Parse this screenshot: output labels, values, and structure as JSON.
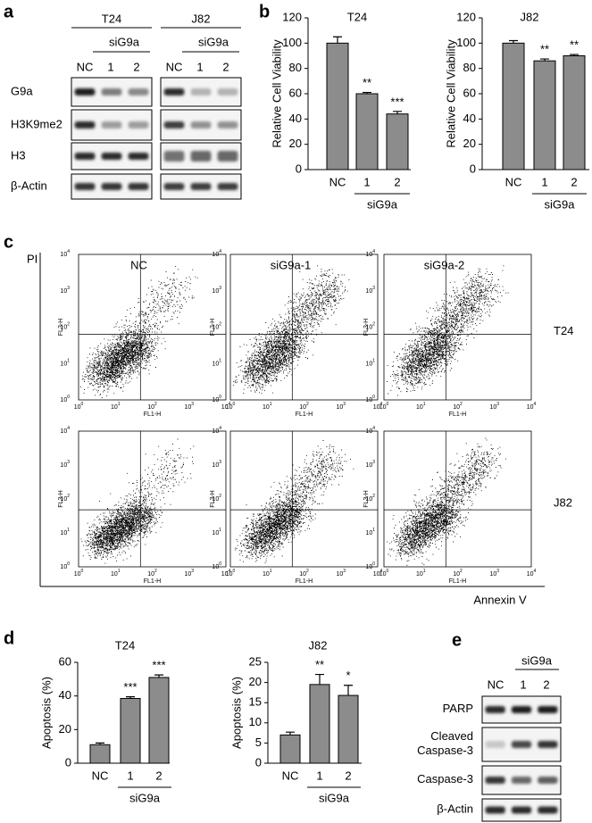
{
  "panel_labels": [
    "a",
    "b",
    "c",
    "d",
    "e"
  ],
  "blot_a": {
    "cell_lines": [
      "T24",
      "J82"
    ],
    "group": "siG9a",
    "lanes": [
      "NC",
      "1",
      "2"
    ],
    "rows": [
      "G9a",
      "H3K9me2",
      "H3",
      "β-Actin"
    ]
  },
  "chart_data": [
    {
      "type": "bar",
      "title": "T24",
      "y_label": "Relative Cell Viability",
      "categories": [
        "NC",
        "1",
        "2"
      ],
      "group_label": "siG9a",
      "series": [
        {
          "color": "#8c8c8c",
          "values": [
            100,
            60,
            44
          ],
          "errors": [
            5,
            1,
            2
          ]
        }
      ],
      "annotations": [
        null,
        "**",
        "***"
      ],
      "ylim": [
        0,
        120
      ],
      "yticks": [
        0,
        20,
        40,
        60,
        80,
        100,
        120
      ]
    },
    {
      "type": "bar",
      "title": "J82",
      "y_label": "Relative Cell Viability",
      "categories": [
        "NC",
        "1",
        "2"
      ],
      "group_label": "siG9a",
      "series": [
        {
          "color": "#8c8c8c",
          "values": [
            100,
            86,
            90
          ],
          "errors": [
            2,
            1.5,
            1
          ]
        }
      ],
      "annotations": [
        null,
        "**",
        "**"
      ],
      "ylim": [
        0,
        120
      ],
      "yticks": [
        0,
        20,
        40,
        60,
        80,
        100,
        120
      ]
    },
    {
      "type": "bar",
      "title": "T24",
      "y_label": "Apoptosis (%)",
      "categories": [
        "NC",
        "1",
        "2"
      ],
      "group_label": "siG9a",
      "series": [
        {
          "color": "#8c8c8c",
          "values": [
            11,
            38.5,
            51
          ],
          "errors": [
            1,
            1,
            1.5
          ]
        }
      ],
      "annotations": [
        null,
        "***",
        "***"
      ],
      "ylim": [
        0,
        60
      ],
      "yticks": [
        0,
        20,
        40,
        60
      ]
    },
    {
      "type": "bar",
      "title": "J82",
      "y_label": "Apoptosis (%)",
      "categories": [
        "NC",
        "1",
        "2"
      ],
      "group_label": "siG9a",
      "series": [
        {
          "color": "#8c8c8c",
          "values": [
            7,
            19.5,
            16.8
          ],
          "errors": [
            0.7,
            2.5,
            2.5
          ]
        }
      ],
      "annotations": [
        null,
        "**",
        "*"
      ],
      "ylim": [
        0,
        25
      ],
      "yticks": [
        0,
        5,
        10,
        15,
        20,
        25
      ]
    }
  ],
  "flow": {
    "columns": [
      "NC",
      "siG9a-1",
      "siG9a-2"
    ],
    "rows": [
      "T24",
      "J82"
    ],
    "y_title": "PI",
    "x_title": "Annexin V",
    "x_label": "FL1-H",
    "y_label": "FL3-H",
    "tick_base": "10",
    "tick_exponents": [
      "0",
      "1",
      "2",
      "3",
      "4"
    ]
  },
  "blot_e": {
    "group": "siG9a",
    "lanes": [
      "NC",
      "1",
      "2"
    ],
    "rows": [
      [
        "PARP"
      ],
      [
        "Cleaved",
        "Caspase-3"
      ],
      [
        "Caspase-3"
      ],
      [
        "β-Actin"
      ]
    ]
  }
}
